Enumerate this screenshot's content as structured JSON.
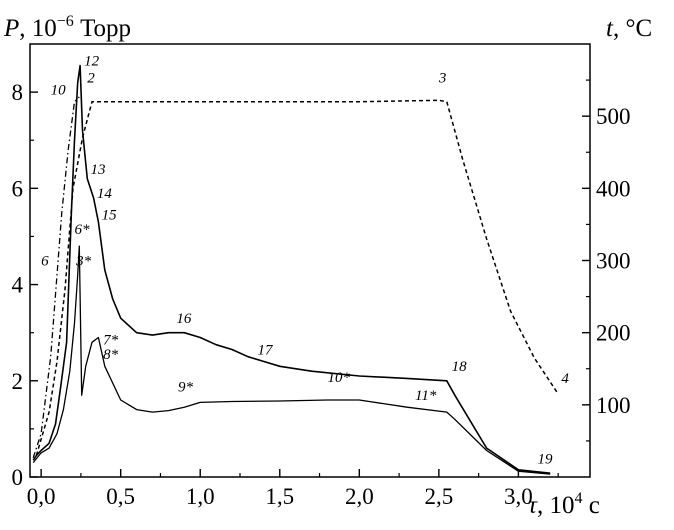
{
  "chart_data": {
    "type": "line",
    "y_left_title": {
      "var": "P",
      "rest": ", 10",
      "exp": "−6",
      "unit": " Торр"
    },
    "y_right_title": {
      "var": "t",
      "rest": ", °C"
    },
    "x_title": {
      "var": "τ",
      "rest": ", 10",
      "exp": "4",
      "unit": " с"
    },
    "xlim": [
      -0.07,
      3.45
    ],
    "ylim_left": [
      0,
      9
    ],
    "ylim_right": [
      0,
      600
    ],
    "x_ticks": [
      0,
      0.5,
      1,
      1.5,
      2,
      2.5,
      3
    ],
    "x_tick_labels": [
      "0,0",
      "0,5",
      "1,0",
      "1,5",
      "2,0",
      "2,5",
      "3,0"
    ],
    "y_left_ticks": [
      0,
      2,
      4,
      6,
      8
    ],
    "y_left_tick_labels": [
      "0",
      "2",
      "4",
      "6",
      "8"
    ],
    "y_right_ticks": [
      100,
      200,
      300,
      400,
      500
    ],
    "y_right_tick_labels": [
      "100",
      "200",
      "300",
      "400",
      "500"
    ],
    "series": [
      {
        "axis": "left",
        "color": "#000000",
        "style": "solid",
        "width": 1.6,
        "x": [
          -0.05,
          -0.03,
          0.0,
          0.05,
          0.09,
          0.12,
          0.16,
          0.19,
          0.21,
          0.23,
          0.245,
          0.26,
          0.29,
          0.33,
          0.36,
          0.4,
          0.45,
          0.5,
          0.6,
          0.7,
          0.8,
          0.9,
          1.0,
          1.1,
          1.2,
          1.3,
          1.4,
          1.5,
          1.7,
          2.0,
          2.3,
          2.55,
          2.6,
          2.8,
          3.0,
          3.2
        ],
        "y": [
          0.35,
          0.45,
          0.55,
          0.7,
          1.1,
          1.8,
          2.8,
          5.5,
          7.0,
          8.2,
          8.55,
          7.2,
          6.2,
          5.8,
          5.3,
          4.3,
          3.7,
          3.3,
          3.0,
          2.95,
          3.0,
          3.0,
          2.9,
          2.75,
          2.65,
          2.5,
          2.4,
          2.3,
          2.2,
          2.1,
          2.05,
          2.0,
          1.7,
          0.6,
          0.15,
          0.08
        ]
      },
      {
        "axis": "left",
        "color": "#000000",
        "style": "solid",
        "width": 1.3,
        "x": [
          -0.05,
          0.0,
          0.05,
          0.1,
          0.14,
          0.18,
          0.21,
          0.23,
          0.24,
          0.255,
          0.28,
          0.32,
          0.36,
          0.4,
          0.5,
          0.6,
          0.7,
          0.8,
          0.9,
          1.0,
          1.2,
          1.5,
          1.8,
          2.0,
          2.3,
          2.55,
          2.6,
          2.8,
          3.0,
          3.2
        ],
        "y": [
          0.3,
          0.5,
          0.6,
          0.9,
          1.4,
          2.2,
          3.2,
          4.2,
          4.8,
          1.7,
          2.3,
          2.8,
          2.9,
          2.3,
          1.6,
          1.4,
          1.35,
          1.38,
          1.45,
          1.55,
          1.57,
          1.58,
          1.6,
          1.6,
          1.45,
          1.35,
          1.2,
          0.55,
          0.12,
          0.06
        ]
      },
      {
        "axis": "left",
        "color": "#000000",
        "style": "dashdot",
        "width": 1.3,
        "x": [
          -0.05,
          0.0,
          0.06,
          0.1,
          0.13,
          0.17,
          0.21,
          0.24
        ],
        "y": [
          0.4,
          0.9,
          2.5,
          4.2,
          5.5,
          6.8,
          7.8,
          7.9
        ]
      },
      {
        "axis": "right",
        "color": "#000000",
        "style": "dashed",
        "width": 1.5,
        "x": [
          -0.03,
          0.05,
          0.1,
          0.15,
          0.2,
          0.26,
          0.32,
          0.6,
          1.0,
          1.5,
          2.0,
          2.5,
          2.55,
          2.65,
          2.8,
          2.95,
          3.1,
          3.25
        ],
        "y": [
          30,
          90,
          160,
          260,
          400,
          470,
          520,
          520,
          520,
          520,
          520,
          522,
          520,
          440,
          330,
          230,
          165,
          115
        ]
      }
    ],
    "annotations": [
      {
        "text": "12",
        "x": 0.27,
        "y": 8.55,
        "axis": "left"
      },
      {
        "text": "10",
        "x": 0.06,
        "y": 7.95,
        "axis": "left"
      },
      {
        "text": "2",
        "x": 0.29,
        "y": 8.2,
        "axis": "left"
      },
      {
        "text": "3",
        "x": 2.5,
        "y": 8.2,
        "axis": "left"
      },
      {
        "text": "13",
        "x": 0.31,
        "y": 6.3,
        "axis": "left"
      },
      {
        "text": "14",
        "x": 0.35,
        "y": 5.8,
        "axis": "left"
      },
      {
        "text": "15",
        "x": 0.38,
        "y": 5.35,
        "axis": "left"
      },
      {
        "text": "6*",
        "x": 0.21,
        "y": 5.05,
        "axis": "left"
      },
      {
        "text": "3*",
        "x": 0.22,
        "y": 4.4,
        "axis": "left"
      },
      {
        "text": "6",
        "x": 0.0,
        "y": 4.4,
        "axis": "left"
      },
      {
        "text": "7*",
        "x": 0.39,
        "y": 2.75,
        "axis": "left"
      },
      {
        "text": "8*",
        "x": 0.39,
        "y": 2.45,
        "axis": "left"
      },
      {
        "text": "9*",
        "x": 0.86,
        "y": 1.78,
        "axis": "left"
      },
      {
        "text": "16",
        "x": 0.85,
        "y": 3.2,
        "axis": "left"
      },
      {
        "text": "17",
        "x": 1.36,
        "y": 2.55,
        "axis": "left"
      },
      {
        "text": "10*",
        "x": 1.8,
        "y": 1.97,
        "axis": "left"
      },
      {
        "text": "11*",
        "x": 2.35,
        "y": 1.6,
        "axis": "left"
      },
      {
        "text": "18",
        "x": 2.58,
        "y": 2.2,
        "axis": "left"
      },
      {
        "text": "4",
        "x": 3.27,
        "y": 1.95,
        "axis": "left"
      },
      {
        "text": "19",
        "x": 3.12,
        "y": 0.28,
        "axis": "left"
      }
    ]
  }
}
